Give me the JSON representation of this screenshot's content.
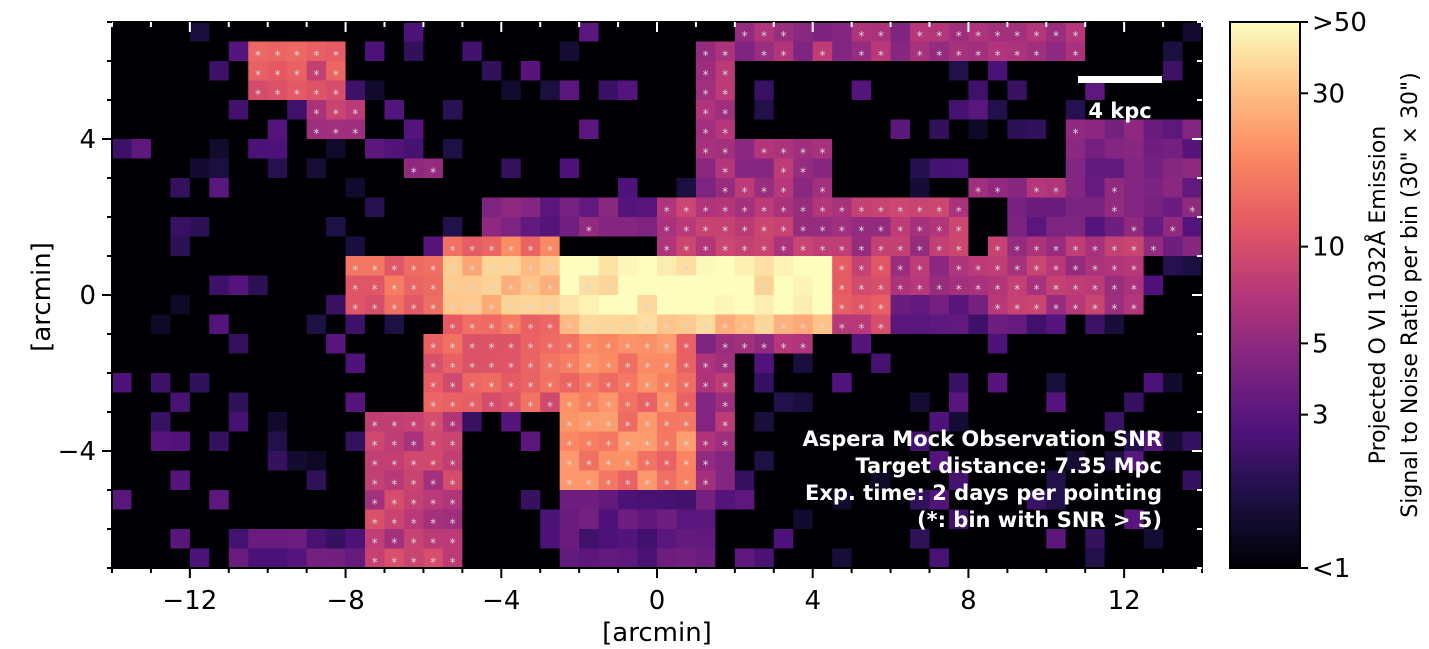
{
  "chart_data": {
    "type": "heatmap",
    "title": "",
    "xlabel": "[arcmin]",
    "ylabel": "[arcmin]",
    "xlim": [
      -14,
      14
    ],
    "ylim": [
      -7,
      7
    ],
    "x_ticks": [
      "−12",
      "−8",
      "−4",
      "0",
      "4",
      "8",
      "12"
    ],
    "x_tick_values": [
      -12,
      -8,
      -4,
      0,
      4,
      8,
      12
    ],
    "y_ticks": [
      "4",
      "0",
      "−4"
    ],
    "y_tick_values": [
      4,
      0,
      -4
    ],
    "bin_size_arcmin": 0.5,
    "colormap": "magma",
    "color_scale": "log",
    "colorbar": {
      "label_line1": "Projected O VI 1032Å Emission",
      "label_line2": "Signal to Noise Ratio per bin (30\" × 30\")",
      "range": [
        1,
        50
      ],
      "ticks": [
        ">50",
        "30",
        "10",
        "5",
        "3",
        "<1"
      ],
      "tick_values": [
        50,
        30,
        10,
        5,
        3,
        1
      ]
    },
    "annotations": {
      "scalebar_label": "4 kpc",
      "line1": "Aspera Mock Observation SNR",
      "line2": "Target distance: 7.35 Mpc",
      "line3": "Exp. time: 2 days per pointing",
      "line4": "(*: bin with SNR > 5)",
      "star_marker": "*",
      "star_threshold": 5
    },
    "regions": [
      {
        "x": [
          -2.5,
          4.5
        ],
        "y": [
          -0.5,
          0.9
        ],
        "snr": 50
      },
      {
        "x": [
          -5.5,
          -2.5
        ],
        "y": [
          -0.5,
          0.9
        ],
        "snr": 30
      },
      {
        "x": [
          -2.5,
          4.5
        ],
        "y": [
          -0.8,
          -0.5
        ],
        "snr": 30
      },
      {
        "x": [
          -2.5,
          4.5
        ],
        "y": [
          0.9,
          1.2
        ],
        "snr": 25
      },
      {
        "x": [
          -8.0,
          -5.5
        ],
        "y": [
          -0.6,
          1.2
        ],
        "snr": 14
      },
      {
        "x": [
          -5.5,
          -2.5
        ],
        "y": [
          -0.8,
          1.5
        ],
        "snr": 16
      },
      {
        "x": [
          -2.5,
          0.8
        ],
        "y": [
          -5.0,
          -0.8
        ],
        "snr": 18
      },
      {
        "x": [
          -6.0,
          -2.5
        ],
        "y": [
          -3.0,
          -0.8
        ],
        "snr": 12
      },
      {
        "x": [
          -7.5,
          -5.0
        ],
        "y": [
          -7.0,
          -3.0
        ],
        "snr": 8
      },
      {
        "x": [
          4.5,
          6.2
        ],
        "y": [
          -1.2,
          1.2
        ],
        "snr": 10
      },
      {
        "x": [
          6.2,
          8.5
        ],
        "y": [
          0.0,
          1.0
        ],
        "snr": 6
      },
      {
        "x": [
          8.5,
          12.5
        ],
        "y": [
          -0.5,
          1.5
        ],
        "snr": 7
      },
      {
        "x": [
          0.0,
          8.0
        ],
        "y": [
          1.2,
          2.5
        ],
        "snr": 7
      },
      {
        "x": [
          3.0,
          8.0
        ],
        "y": [
          2.0,
          2.5
        ],
        "snr": 7
      },
      {
        "x": [
          8.0,
          10.5
        ],
        "y": [
          2.5,
          3.0
        ],
        "snr": 6
      },
      {
        "x": [
          0.8,
          4.5
        ],
        "y": [
          2.5,
          4.0
        ],
        "snr": 6
      },
      {
        "x": [
          0.8,
          2.0
        ],
        "y": [
          4.0,
          6.5
        ],
        "snr": 6
      },
      {
        "x": [
          2.0,
          11.0
        ],
        "y": [
          5.8,
          6.8
        ],
        "snr": 6
      },
      {
        "x": [
          -10.5,
          -8.0
        ],
        "y": [
          5.0,
          6.5
        ],
        "snr": 11
      },
      {
        "x": [
          -9.0,
          -7.5
        ],
        "y": [
          4.0,
          5.2
        ],
        "snr": 7
      },
      {
        "x": [
          0.8,
          2.0
        ],
        "y": [
          -5.0,
          -0.8
        ],
        "snr": 6
      },
      {
        "x": [
          2.0,
          4.0
        ],
        "y": [
          -1.5,
          -0.8
        ],
        "snr": 6
      },
      {
        "x": [
          -11.0,
          -7.5
        ],
        "y": [
          -7.0,
          -6.0
        ],
        "snr": 3
      },
      {
        "x": [
          10.5,
          14.0
        ],
        "y": [
          3.0,
          4.5
        ],
        "snr": 4
      },
      {
        "x": [
          9.0,
          14.0
        ],
        "y": [
          1.0,
          3.0
        ],
        "snr": 4
      },
      {
        "x": [
          6.0,
          10.0
        ],
        "y": [
          -1.0,
          0.0
        ],
        "snr": 3
      },
      {
        "x": [
          -4.5,
          0.0
        ],
        "y": [
          1.5,
          2.5
        ],
        "snr": 4
      },
      {
        "x": [
          -2.5,
          1.5
        ],
        "y": [
          -7.0,
          -5.0
        ],
        "snr": 3
      },
      {
        "x": [
          -6.5,
          -5.5
        ],
        "y": [
          3.0,
          3.5
        ],
        "snr": 6
      }
    ]
  }
}
